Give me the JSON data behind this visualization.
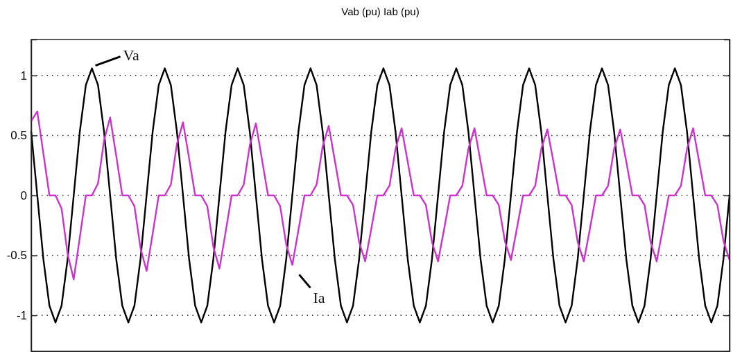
{
  "chart_data": {
    "type": "line",
    "title": "Vab (pu) Iab (pu)",
    "categories": [
      null,
      null,
      null,
      null,
      null,
      null,
      null,
      null,
      null,
      null,
      null,
      null,
      null,
      null,
      null,
      null,
      null,
      null,
      null,
      null,
      null,
      null,
      null,
      null,
      null,
      null,
      null,
      null,
      null,
      null,
      null,
      null,
      null,
      null,
      null,
      null,
      null,
      null,
      null,
      null,
      null,
      null,
      null,
      null,
      null,
      null,
      null,
      null,
      null,
      null,
      null,
      null,
      null,
      null,
      null,
      null,
      null,
      null,
      null,
      null,
      null,
      null,
      null,
      null,
      null,
      null,
      null,
      null,
      null,
      null,
      null,
      null,
      null,
      null,
      null,
      null,
      null,
      null,
      null,
      null,
      null,
      null,
      null,
      null,
      null,
      null,
      null,
      null,
      null,
      null,
      null,
      null,
      null,
      null,
      null,
      null,
      null,
      null,
      null,
      null,
      null,
      null,
      null,
      null,
      null,
      null,
      null,
      null,
      null,
      null,
      null,
      null,
      null,
      null,
      null,
      null
    ],
    "series": [
      {
        "color": "#000000",
        "values": [
          0.53,
          0,
          -0.53,
          -0.92,
          -1.06,
          -0.92,
          -0.53,
          0,
          0.53,
          0.92,
          1.06,
          0.92,
          0.53,
          0,
          -0.53,
          -0.92,
          -1.06,
          -0.92,
          -0.53,
          0,
          0.53,
          0.92,
          1.06,
          0.92,
          0.53,
          0,
          -0.53,
          -0.92,
          -1.06,
          -0.92,
          -0.53,
          0,
          0.53,
          0.92,
          1.06,
          0.92,
          0.53,
          0,
          -0.53,
          -0.92,
          -1.06,
          -0.92,
          -0.53,
          0,
          0.53,
          0.92,
          1.06,
          0.92,
          0.53,
          0,
          -0.53,
          -0.92,
          -1.06,
          -0.92,
          -0.53,
          0,
          0.53,
          0.92,
          1.06,
          0.92,
          0.53,
          0,
          -0.53,
          -0.92,
          -1.06,
          -0.92,
          -0.53,
          0,
          0.53,
          0.92,
          1.06,
          0.92,
          0.53,
          0,
          -0.53,
          -0.92,
          -1.06,
          -0.92,
          -0.53,
          0,
          0.53,
          0.92,
          1.06,
          0.92,
          0.53,
          0,
          -0.53,
          -0.92,
          -1.06,
          -0.92,
          -0.53,
          0,
          0.53,
          0.92,
          1.06,
          0.92,
          0.53,
          0,
          -0.53,
          -0.92,
          -1.06,
          -0.92,
          -0.53,
          0,
          0.53,
          0.92,
          1.06,
          0.92,
          0.53,
          0,
          -0.53,
          -0.92,
          -1.06,
          -0.92,
          -0.53,
          0
        ]
      },
      {
        "color": "#cc33cc",
        "values": [
          0.62,
          0.7,
          0.35,
          0,
          0,
          -0.11,
          -0.49,
          -0.7,
          -0.35,
          0,
          0,
          0.1,
          0.46,
          0.65,
          0.33,
          0,
          0,
          -0.09,
          -0.44,
          -0.63,
          -0.32,
          0,
          0,
          0.09,
          0.43,
          0.61,
          0.31,
          0,
          0,
          -0.09,
          -0.43,
          -0.61,
          -0.31,
          0,
          0,
          0.09,
          0.42,
          0.6,
          0.3,
          0,
          0,
          -0.09,
          -0.41,
          -0.58,
          -0.29,
          0,
          0,
          0.09,
          0.41,
          0.58,
          0.29,
          0,
          0,
          -0.08,
          -0.39,
          -0.55,
          -0.28,
          0,
          0,
          0.08,
          0.39,
          0.56,
          0.28,
          0,
          0,
          -0.08,
          -0.39,
          -0.55,
          -0.28,
          0,
          0,
          0.08,
          0.39,
          0.56,
          0.28,
          0,
          0,
          -0.08,
          -0.38,
          -0.54,
          -0.27,
          0,
          0,
          0.08,
          0.39,
          0.55,
          0.28,
          0,
          0,
          -0.08,
          -0.39,
          -0.55,
          -0.28,
          0,
          0,
          0.08,
          0.39,
          0.55,
          0.28,
          0,
          0,
          -0.08,
          -0.39,
          -0.55,
          -0.28,
          0,
          0,
          0.08,
          0.39,
          0.56,
          0.28,
          0,
          0,
          -0.08,
          -0.38,
          -0.54
        ]
      }
    ],
    "ylim": [
      -1.3,
      1.3
    ],
    "yticks": [
      -1,
      -0.5,
      0,
      0.5,
      1
    ],
    "annotations": [
      "Va",
      "Ia"
    ],
    "grid": "y",
    "line_style": "solid"
  }
}
